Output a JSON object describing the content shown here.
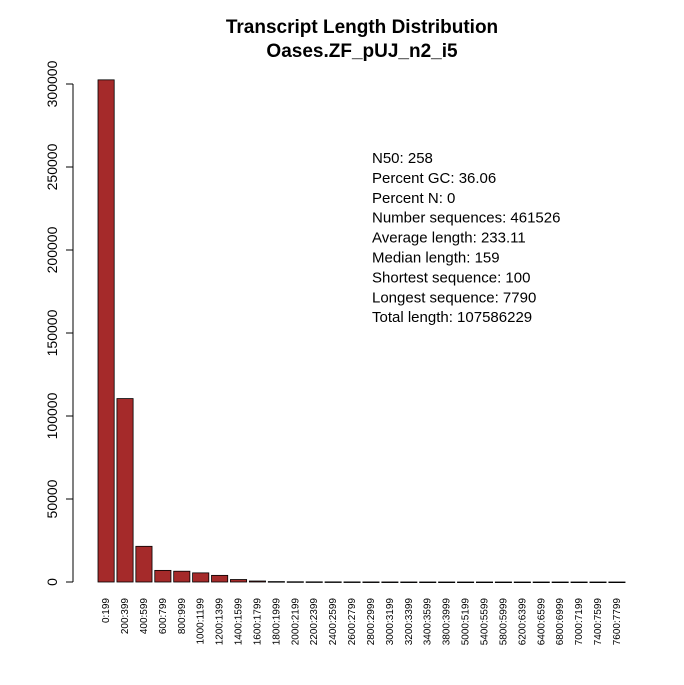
{
  "chart_data": {
    "type": "bar",
    "title": "Transcript Length Distribution",
    "subtitle": "Oases.ZF_pUJ_n2_i5",
    "xlabel": "",
    "ylabel": "",
    "bar_color": "#a52a2a",
    "ylim": [
      0,
      300000
    ],
    "yticks": [
      0,
      50000,
      100000,
      150000,
      200000,
      250000,
      300000
    ],
    "ytick_labels": [
      "0",
      "50000",
      "100000",
      "150000",
      "200000",
      "250000",
      "300000"
    ],
    "categories": [
      "0:199",
      "200:399",
      "400:599",
      "600:799",
      "800:999",
      "1000:1199",
      "1200:1399",
      "1400:1599",
      "1600:1799",
      "1800:1999",
      "2000:2199",
      "2200:2399",
      "2400:2599",
      "2600:2799",
      "2800:2999",
      "3000:3199",
      "3200:3399",
      "3400:3599",
      "3800:3999",
      "5000:5199",
      "5400:5599",
      "5800:5999",
      "6200:6399",
      "6400:6599",
      "6800:6999",
      "7000:7199",
      "7400:7599",
      "7600:7799"
    ],
    "values": [
      302500,
      110500,
      21500,
      7000,
      6500,
      5500,
      4000,
      1500,
      600,
      250,
      150,
      100,
      80,
      60,
      40,
      30,
      20,
      15,
      10,
      5,
      5,
      5,
      5,
      5,
      5,
      5,
      5,
      5
    ],
    "grid": false,
    "legend": "none",
    "annotations": [
      "N50: 258",
      "Percent GC: 36.06",
      "Percent N: 0",
      "Number sequences: 461526",
      "Average length: 233.11",
      "Median length: 159",
      "Shortest sequence: 100",
      "Longest sequence: 7790",
      "Total length: 107586229"
    ]
  }
}
